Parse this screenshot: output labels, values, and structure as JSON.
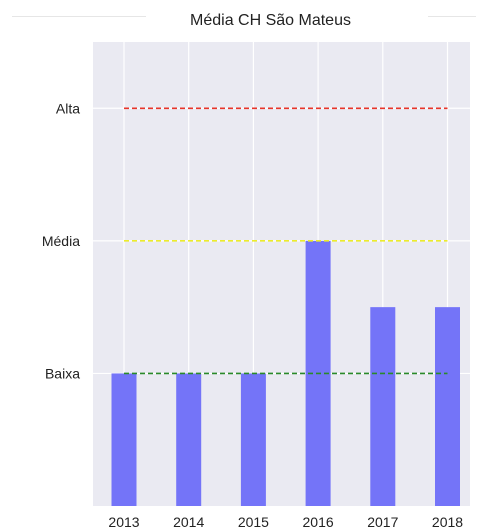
{
  "chart_data": {
    "type": "bar",
    "title": "Média CH São Mateus",
    "categories": [
      "2013",
      "2014",
      "2015",
      "2016",
      "2017",
      "2018"
    ],
    "values": [
      1,
      1,
      1,
      2,
      1.5,
      1.5
    ],
    "y_ticks": [
      {
        "value": 1,
        "label": "Baixa"
      },
      {
        "value": 2,
        "label": "Média"
      },
      {
        "value": 3,
        "label": "Alta"
      }
    ],
    "ylim": [
      0,
      3.5
    ],
    "grid": true,
    "bar_color": "#7474f8",
    "reference_lines": [
      {
        "value": 3,
        "color": "#e8352a",
        "style": "dashed"
      },
      {
        "value": 2,
        "color": "#ecec2c",
        "style": "dashed"
      },
      {
        "value": 1,
        "color": "#2a8a2a",
        "style": "dashed"
      }
    ],
    "background_color": "#eaeaf2",
    "grid_color": "#ffffff"
  }
}
